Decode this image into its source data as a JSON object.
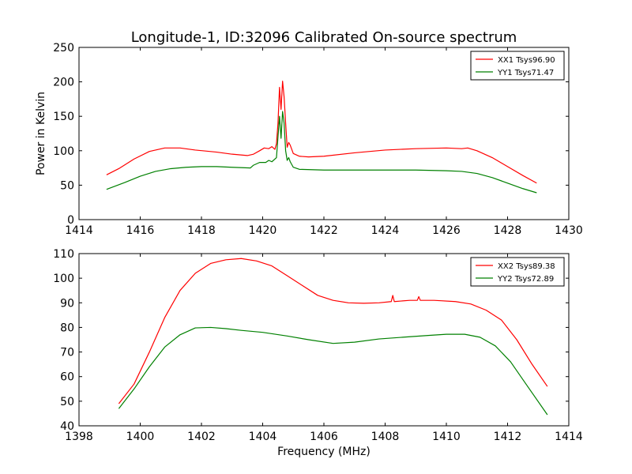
{
  "figure": {
    "title": "Longitude-1, ID:32096 Calibrated On-source spectrum"
  },
  "chart_data": [
    {
      "type": "line",
      "title": "Longitude-1, ID:32096 Calibrated On-source spectrum",
      "xlabel": "",
      "ylabel": "Power in Kelvin",
      "xlim": [
        1414,
        1430
      ],
      "ylim": [
        0,
        250
      ],
      "xticks": [
        1414,
        1416,
        1418,
        1420,
        1422,
        1424,
        1426,
        1428,
        1430
      ],
      "yticks": [
        0,
        50,
        100,
        150,
        200,
        250
      ],
      "grid": false,
      "legend_position": "top-right",
      "series": [
        {
          "name": "XX1 Tsys96.90",
          "color": "#ff0000",
          "points": [
            [
              1414.9,
              65
            ],
            [
              1415.3,
              74
            ],
            [
              1415.8,
              88
            ],
            [
              1416.3,
              99
            ],
            [
              1416.8,
              104
            ],
            [
              1417.3,
              104
            ],
            [
              1417.8,
              101
            ],
            [
              1418.5,
              98
            ],
            [
              1419,
              95
            ],
            [
              1419.5,
              93
            ],
            [
              1419.7,
              95
            ],
            [
              1419.9,
              100
            ],
            [
              1420.05,
              104
            ],
            [
              1420.2,
              103
            ],
            [
              1420.3,
              106
            ],
            [
              1420.4,
              102
            ],
            [
              1420.45,
              110
            ],
            [
              1420.5,
              140
            ],
            [
              1420.55,
              192
            ],
            [
              1420.6,
              160
            ],
            [
              1420.65,
              201
            ],
            [
              1420.7,
              178
            ],
            [
              1420.75,
              140
            ],
            [
              1420.8,
              105
            ],
            [
              1420.85,
              112
            ],
            [
              1420.9,
              108
            ],
            [
              1421,
              96
            ],
            [
              1421.2,
              92
            ],
            [
              1421.5,
              91
            ],
            [
              1422,
              92
            ],
            [
              1423,
              97
            ],
            [
              1424,
              101
            ],
            [
              1425,
              103
            ],
            [
              1426,
              104
            ],
            [
              1426.5,
              103
            ],
            [
              1426.7,
              104
            ],
            [
              1427,
              100
            ],
            [
              1427.5,
              90
            ],
            [
              1428,
              77
            ],
            [
              1428.5,
              64
            ],
            [
              1428.95,
              53
            ]
          ]
        },
        {
          "name": "YY1 Tsys71.47",
          "color": "#008000",
          "points": [
            [
              1414.9,
              44
            ],
            [
              1415.5,
              54
            ],
            [
              1416,
              63
            ],
            [
              1416.5,
              70
            ],
            [
              1417,
              74
            ],
            [
              1417.5,
              76
            ],
            [
              1418,
              77
            ],
            [
              1418.5,
              77
            ],
            [
              1419,
              76
            ],
            [
              1419.6,
              75
            ],
            [
              1419.7,
              79
            ],
            [
              1419.9,
              83
            ],
            [
              1420.1,
              83
            ],
            [
              1420.2,
              86
            ],
            [
              1420.3,
              84
            ],
            [
              1420.45,
              90
            ],
            [
              1420.5,
              120
            ],
            [
              1420.55,
              150
            ],
            [
              1420.6,
              118
            ],
            [
              1420.65,
              157
            ],
            [
              1420.7,
              140
            ],
            [
              1420.75,
              100
            ],
            [
              1420.8,
              86
            ],
            [
              1420.85,
              90
            ],
            [
              1420.9,
              84
            ],
            [
              1421,
              76
            ],
            [
              1421.2,
              73
            ],
            [
              1422,
              72
            ],
            [
              1423,
              72
            ],
            [
              1424,
              72
            ],
            [
              1425,
              72
            ],
            [
              1426,
              71
            ],
            [
              1426.5,
              70
            ],
            [
              1427,
              67
            ],
            [
              1427.5,
              61
            ],
            [
              1428,
              53
            ],
            [
              1428.5,
              45
            ],
            [
              1428.95,
              39
            ]
          ]
        }
      ]
    },
    {
      "type": "line",
      "title": "",
      "xlabel": "Frequency (MHz)",
      "ylabel": "",
      "xlim": [
        1398,
        1414
      ],
      "ylim": [
        40,
        110
      ],
      "xticks": [
        1398,
        1400,
        1402,
        1404,
        1406,
        1408,
        1410,
        1412,
        1414
      ],
      "yticks": [
        40,
        50,
        60,
        70,
        80,
        90,
        100,
        110
      ],
      "grid": false,
      "legend_position": "top-right",
      "series": [
        {
          "name": "XX2 Tsys89.38",
          "color": "#ff0000",
          "points": [
            [
              1399.3,
              49
            ],
            [
              1399.8,
              57
            ],
            [
              1400.3,
              70
            ],
            [
              1400.8,
              84
            ],
            [
              1401.3,
              95
            ],
            [
              1401.8,
              102
            ],
            [
              1402.3,
              106
            ],
            [
              1402.8,
              107.5
            ],
            [
              1403.3,
              108
            ],
            [
              1403.8,
              107
            ],
            [
              1404.3,
              105
            ],
            [
              1404.8,
              101
            ],
            [
              1405.3,
              97
            ],
            [
              1405.8,
              93
            ],
            [
              1406.3,
              91
            ],
            [
              1406.8,
              90
            ],
            [
              1407.3,
              89.8
            ],
            [
              1407.8,
              90
            ],
            [
              1408.2,
              90.5
            ],
            [
              1408.25,
              93
            ],
            [
              1408.3,
              90.5
            ],
            [
              1408.8,
              91
            ],
            [
              1409.05,
              91
            ],
            [
              1409.1,
              92.5
            ],
            [
              1409.15,
              91
            ],
            [
              1409.6,
              91
            ],
            [
              1410.3,
              90.5
            ],
            [
              1410.8,
              89.5
            ],
            [
              1411.3,
              87
            ],
            [
              1411.8,
              83
            ],
            [
              1412.3,
              75
            ],
            [
              1412.8,
              65
            ],
            [
              1413.3,
              56
            ]
          ]
        },
        {
          "name": "YY2 Tsys72.89",
          "color": "#008000",
          "points": [
            [
              1399.3,
              47
            ],
            [
              1399.8,
              55
            ],
            [
              1400.3,
              64
            ],
            [
              1400.8,
              72
            ],
            [
              1401.3,
              77
            ],
            [
              1401.8,
              79.8
            ],
            [
              1402.3,
              80
            ],
            [
              1402.8,
              79.5
            ],
            [
              1403.3,
              78.8
            ],
            [
              1404,
              78
            ],
            [
              1404.8,
              76.5
            ],
            [
              1405.5,
              75
            ],
            [
              1406.3,
              73.5
            ],
            [
              1407,
              74
            ],
            [
              1407.8,
              75.3
            ],
            [
              1408.8,
              76.2
            ],
            [
              1409.5,
              76.8
            ],
            [
              1410,
              77.2
            ],
            [
              1410.6,
              77.2
            ],
            [
              1411.1,
              76
            ],
            [
              1411.6,
              72.5
            ],
            [
              1412.1,
              66
            ],
            [
              1412.6,
              57
            ],
            [
              1413.3,
              44.5
            ]
          ]
        }
      ]
    }
  ]
}
